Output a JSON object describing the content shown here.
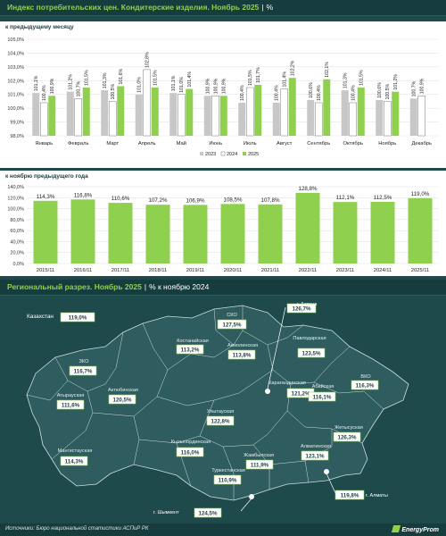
{
  "header": {
    "title": "Индекс потребительских цен. Кондитерские изделия. Ноябрь 2025",
    "sep": "|",
    "unit": "%"
  },
  "regional_header": {
    "title": "Региональный разрез. Ноябрь 2025",
    "sep": "|",
    "unit": "% к ноябрю 2024"
  },
  "footer": {
    "source": "Источники: Бюро национальной статистики АСПиР РК",
    "logo": "EnergyProm"
  },
  "colors": {
    "s2023": "#c7c7c7",
    "s2024": "#ffffff",
    "s2025": "#8fd14f",
    "background": "#1f4a4c",
    "map_fill": "#2f5c5e"
  },
  "chart_data": [
    {
      "type": "bar",
      "title": "к предыдущему месяцу",
      "categories": [
        "Январь",
        "Февраль",
        "Март",
        "Апрель",
        "Май",
        "Июнь",
        "Июль",
        "Август",
        "Сентябрь",
        "Октябрь",
        "Ноябрь",
        "Декабрь"
      ],
      "series": [
        {
          "name": "2023",
          "values": [
            101.1,
            101.2,
            101.3,
            101.0,
            101.1,
            100.9,
            100.4,
            100.4,
            100.6,
            101.3,
            100.6,
            100.7
          ]
        },
        {
          "name": "2024",
          "values": [
            100.4,
            100.7,
            100.5,
            102.8,
            101.0,
            100.9,
            101.5,
            101.4,
            100.4,
            100.4,
            100.5,
            100.9
          ]
        },
        {
          "name": "2025",
          "values": [
            100.9,
            101.5,
            101.6,
            101.5,
            101.4,
            100.9,
            101.7,
            102.2,
            102.1,
            101.5,
            101.2,
            null
          ]
        }
      ],
      "value_labels": {
        "2023": [
          "101,1%",
          "101,2%",
          "101,3%",
          "101,0%",
          "101,1%",
          "100,9%",
          "100,4%",
          "100,4%",
          "100,6%",
          "101,3%",
          "100,6%",
          "100,7%"
        ],
        "2024": [
          "100,4%",
          "100,7%",
          "100,5%",
          "102,8%",
          "101,0%",
          "100,9%",
          "101,5%",
          "101,4%",
          "100,4%",
          "100,4%",
          "100,5%",
          "100,9%"
        ],
        "2025": [
          "100,9%",
          "101,5%",
          "101,6%",
          "101,5%",
          "101,4%",
          "100,9%",
          "101,7%",
          "102,2%",
          "102,1%",
          "101,5%",
          "101,2%",
          ""
        ]
      },
      "y_ticks": [
        "98,0%",
        "99,0%",
        "100,0%",
        "101,0%",
        "102,0%",
        "103,0%",
        "104,0%",
        "105,0%"
      ],
      "ylim": [
        98,
        105
      ],
      "legend_position": "bottom-right"
    },
    {
      "type": "bar",
      "title": "к ноябрю предыдущего года",
      "categories": [
        "2015/11",
        "2016/11",
        "2017/11",
        "2018/11",
        "2019/11",
        "2020/11",
        "2021/11",
        "2022/11",
        "2023/11",
        "2024/11",
        "2025/11"
      ],
      "values": [
        114.3,
        116.8,
        110.6,
        107.2,
        106.9,
        108.5,
        107.8,
        128.8,
        112.1,
        112.5,
        119.0
      ],
      "value_labels": [
        "114,3%",
        "116,8%",
        "110,6%",
        "107,2%",
        "106,9%",
        "108,5%",
        "107,8%",
        "128,8%",
        "112,1%",
        "112,5%",
        "119,0%"
      ],
      "y_ticks": [
        "0,0%",
        "20,0%",
        "40,0%",
        "60,0%",
        "80,0%",
        "100,0%",
        "120,0%",
        "140,0%"
      ],
      "ylim": [
        0,
        140
      ]
    }
  ],
  "regions": [
    {
      "name": "Казахстан",
      "value": "119,0%"
    },
    {
      "name": "СКО",
      "value": "127,5%"
    },
    {
      "name": "г. Астана",
      "value": "126,7%"
    },
    {
      "name": "Костанайская",
      "value": "113,2%"
    },
    {
      "name": "Акмолинская",
      "value": "113,8%"
    },
    {
      "name": "Павлодарская",
      "value": "123,5%"
    },
    {
      "name": "ЗКО",
      "value": "116,7%"
    },
    {
      "name": "ВКО",
      "value": "116,3%"
    },
    {
      "name": "Актюбинская",
      "value": "120,5%"
    },
    {
      "name": "Карагандинская",
      "value": "121,2%"
    },
    {
      "name": "Абайская",
      "value": "116,1%"
    },
    {
      "name": "Атырауская",
      "value": "111,6%"
    },
    {
      "name": "Улытауская",
      "value": "122,8%"
    },
    {
      "name": "Жетысуская",
      "value": "126,3%"
    },
    {
      "name": "Кызылординская",
      "value": "116,0%"
    },
    {
      "name": "Мангистауская",
      "value": "114,3%"
    },
    {
      "name": "Жамбылская",
      "value": "111,9%"
    },
    {
      "name": "Алматинская",
      "value": "123,1%"
    },
    {
      "name": "Туркестанская",
      "value": "110,9%"
    },
    {
      "name": "г. Алматы",
      "value": "119,8%"
    },
    {
      "name": "г. Шымкент",
      "value": "124,5%"
    }
  ]
}
